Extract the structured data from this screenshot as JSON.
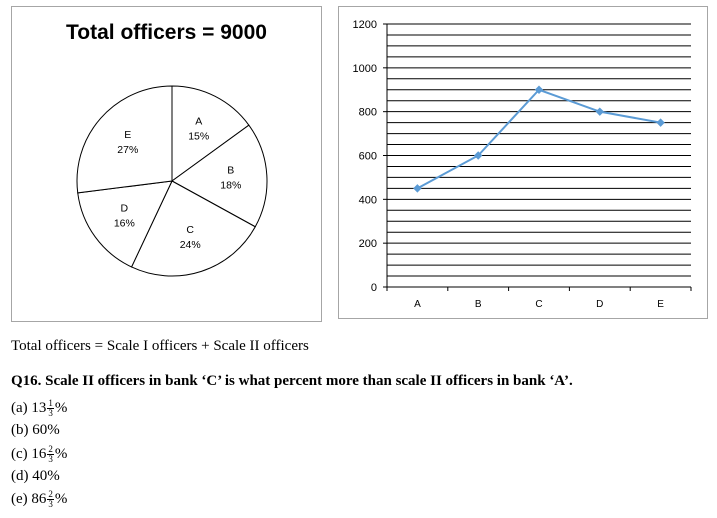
{
  "chart_data": [
    {
      "type": "pie",
      "title": "Total officers = 9000",
      "slices": [
        {
          "label": "A",
          "value": 15,
          "display": "15%"
        },
        {
          "label": "B",
          "value": 18,
          "display": "18%"
        },
        {
          "label": "C",
          "value": 24,
          "display": "24%"
        },
        {
          "label": "D",
          "value": 16,
          "display": "16%"
        },
        {
          "label": "E",
          "value": 27,
          "display": "27%"
        }
      ]
    },
    {
      "type": "line",
      "categories": [
        "A",
        "B",
        "C",
        "D",
        "E"
      ],
      "values": [
        450,
        600,
        900,
        800,
        750
      ],
      "ylim": [
        0,
        1200
      ],
      "yticks": [
        0,
        200,
        400,
        600,
        800,
        1000,
        1200
      ],
      "minor_grid_step": 50,
      "grid": true,
      "color": "#5b9bd5"
    }
  ],
  "text": {
    "note": "Total officers = Scale I officers + Scale II officers",
    "question": "Q16. Scale II officers in bank ‘C’ is what percent more than scale II officers in bank ‘A’.",
    "options": [
      {
        "label": "(a)",
        "whole": "13",
        "num": "1",
        "den": "3",
        "suffix": "%"
      },
      {
        "label": "(b)",
        "whole": "60%",
        "num": "",
        "den": "",
        "suffix": ""
      },
      {
        "label": "(c)",
        "whole": "16",
        "num": "2",
        "den": "3",
        "suffix": "%"
      },
      {
        "label": "(d)",
        "whole": "40%",
        "num": "",
        "den": "",
        "suffix": ""
      },
      {
        "label": "(e)",
        "whole": "86",
        "num": "2",
        "den": "3",
        "suffix": "%"
      }
    ]
  }
}
